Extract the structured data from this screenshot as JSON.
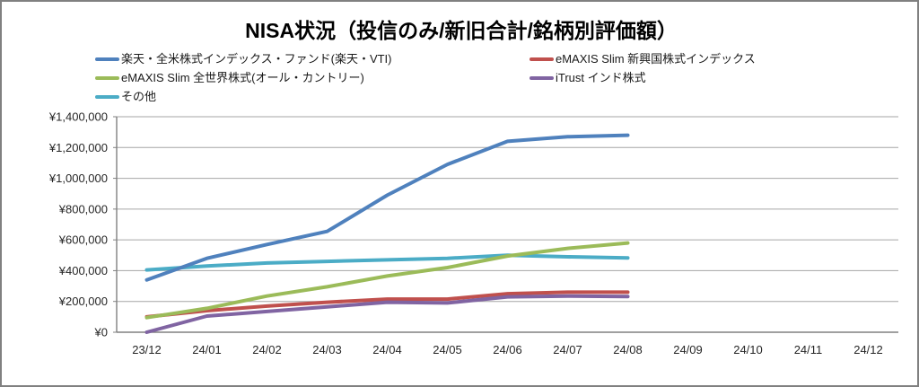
{
  "window": {
    "background": "#ffffff",
    "border_color": "#808080"
  },
  "chart_data": {
    "type": "line",
    "title": "NISA状況（投信のみ/新旧合計/銘柄別評価額）",
    "categories": [
      "23/12",
      "24/01",
      "24/02",
      "24/03",
      "24/04",
      "24/05",
      "24/06",
      "24/07",
      "24/08",
      "24/09",
      "24/10",
      "24/11",
      "24/12"
    ],
    "series": [
      {
        "name": "楽天・全米株式インデックス・ファンド(楽天・VTI)",
        "color": "#4F81BD",
        "values": [
          340000,
          480000,
          570000,
          655000,
          890000,
          1090000,
          1240000,
          1270000,
          1280000
        ]
      },
      {
        "name": "eMAXIS Slim 新興国株式インデックス",
        "color": "#C0504D",
        "values": [
          100000,
          140000,
          170000,
          195000,
          215000,
          215000,
          250000,
          260000,
          260000
        ]
      },
      {
        "name": "eMAXIS Slim 全世界株式(オール・カントリー)",
        "color": "#9BBB59",
        "values": [
          95000,
          155000,
          235000,
          295000,
          365000,
          420000,
          495000,
          545000,
          580000
        ]
      },
      {
        "name": "iTrust インド株式",
        "color": "#8064A2",
        "values": [
          0,
          105000,
          135000,
          165000,
          195000,
          190000,
          230000,
          235000,
          232000
        ]
      },
      {
        "name": "その他",
        "color": "#4BACC6",
        "values": [
          405000,
          430000,
          450000,
          460000,
          470000,
          480000,
          500000,
          490000,
          483000
        ]
      }
    ],
    "ylim": [
      0,
      1400000
    ],
    "y_tick_step": 200000,
    "y_tick_labels": [
      "¥0",
      "¥200,000",
      "¥400,000",
      "¥600,000",
      "¥800,000",
      "¥1,000,000",
      "¥1,200,000",
      "¥1,400,000"
    ],
    "xlabel": "",
    "ylabel": "",
    "grid": true,
    "legend_position": "top-two-columns",
    "grid_color": "#A6A6A6",
    "axis_color": "#808080",
    "label_color": "#262626"
  }
}
